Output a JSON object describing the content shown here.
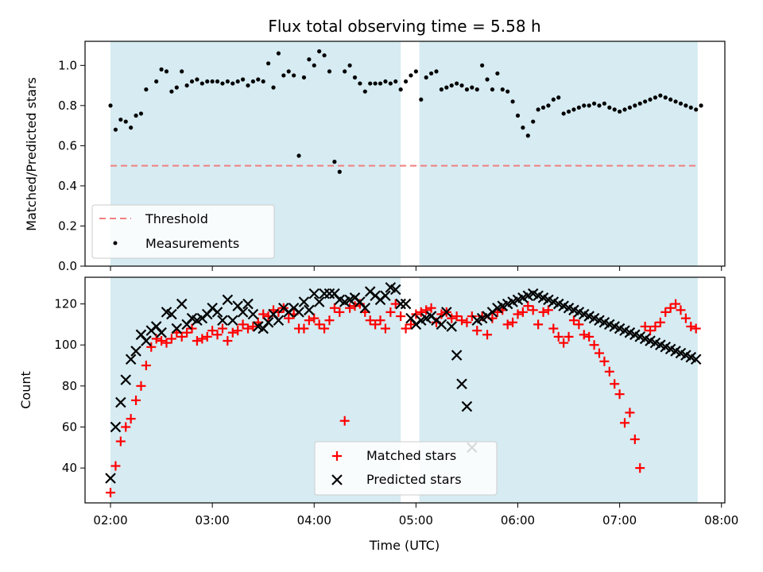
{
  "chart_data": [
    {
      "type": "scatter",
      "title": "Flux total observing time = 5.58 h",
      "xlabel": "",
      "ylabel": "Matched/Predicted stars",
      "xlim": [
        "01:45",
        "08:02"
      ],
      "ylim": [
        0,
        1.12
      ],
      "x_ticks": [
        "02:00",
        "03:00",
        "04:00",
        "05:00",
        "06:00",
        "07:00",
        "08:00"
      ],
      "y_ticks": [
        "0.0",
        "0.2",
        "0.4",
        "0.6",
        "0.8",
        "1.0"
      ],
      "grid": false,
      "legend_position": "lower-left",
      "shaded_intervals": [
        [
          "02:00",
          "04:51"
        ],
        [
          "05:02",
          "07:46"
        ]
      ],
      "shade_color": "#add8e6",
      "threshold": {
        "name": "Threshold",
        "value": 0.5,
        "style": "dashed",
        "color": "#f08080"
      },
      "series": [
        {
          "name": "Measurements",
          "marker": "dot",
          "color": "#000000",
          "x": [
            "02:00",
            "02:03",
            "02:06",
            "02:09",
            "02:12",
            "02:15",
            "02:18",
            "02:21",
            "02:27",
            "02:30",
            "02:33",
            "02:36",
            "02:39",
            "02:42",
            "02:45",
            "02:48",
            "02:51",
            "02:54",
            "02:57",
            "03:00",
            "03:03",
            "03:06",
            "03:09",
            "03:12",
            "03:15",
            "03:18",
            "03:21",
            "03:24",
            "03:27",
            "03:30",
            "03:33",
            "03:36",
            "03:39",
            "03:42",
            "03:45",
            "03:48",
            "03:51",
            "03:54",
            "03:57",
            "04:00",
            "04:03",
            "04:06",
            "04:09",
            "04:12",
            "04:15",
            "04:18",
            "04:21",
            "04:24",
            "04:27",
            "04:30",
            "04:33",
            "04:36",
            "04:39",
            "04:42",
            "04:45",
            "04:48",
            "04:51",
            "04:54",
            "04:57",
            "05:00",
            "05:03",
            "05:06",
            "05:09",
            "05:12",
            "05:15",
            "05:18",
            "05:21",
            "05:24",
            "05:27",
            "05:30",
            "05:33",
            "05:36",
            "05:39",
            "05:42",
            "05:45",
            "05:48",
            "05:51",
            "05:54",
            "05:57",
            "06:00",
            "06:03",
            "06:06",
            "06:09",
            "06:12",
            "06:15",
            "06:18",
            "06:21",
            "06:24",
            "06:27",
            "06:30",
            "06:33",
            "06:36",
            "06:39",
            "06:42",
            "06:45",
            "06:48",
            "06:51",
            "06:54",
            "06:57",
            "07:00",
            "07:03",
            "07:06",
            "07:09",
            "07:12",
            "07:15",
            "07:18",
            "07:21",
            "07:24",
            "07:27",
            "07:30",
            "07:33",
            "07:36",
            "07:39",
            "07:42",
            "07:45",
            "07:48"
          ],
          "y": [
            0.8,
            0.68,
            0.73,
            0.72,
            0.69,
            0.75,
            0.76,
            0.88,
            0.92,
            0.98,
            0.97,
            0.87,
            0.89,
            0.97,
            0.9,
            0.92,
            0.93,
            0.91,
            0.92,
            0.92,
            0.92,
            0.91,
            0.92,
            0.91,
            0.92,
            0.93,
            0.9,
            0.92,
            0.93,
            0.92,
            1.01,
            0.89,
            1.06,
            0.95,
            0.97,
            0.95,
            0.55,
            0.94,
            1.03,
            1.0,
            1.07,
            1.05,
            0.97,
            0.52,
            0.47,
            0.97,
            1.0,
            0.94,
            0.91,
            0.87,
            0.91,
            0.91,
            0.91,
            0.92,
            0.91,
            0.92,
            0.88,
            0.92,
            0.95,
            0.97,
            0.83,
            0.94,
            0.96,
            0.97,
            0.88,
            0.89,
            0.9,
            0.91,
            0.9,
            0.88,
            0.89,
            0.88,
            1.0,
            0.93,
            0.88,
            0.96,
            0.88,
            0.87,
            0.82,
            0.75,
            0.69,
            0.65,
            0.72,
            0.78,
            0.79,
            0.8,
            0.83,
            0.84,
            0.76,
            0.77,
            0.78,
            0.79,
            0.8,
            0.8,
            0.81,
            0.8,
            0.81,
            0.79,
            0.78,
            0.77,
            0.78,
            0.79,
            0.8,
            0.81,
            0.82,
            0.83,
            0.84,
            0.85,
            0.84,
            0.83,
            0.82,
            0.81,
            0.8,
            0.79,
            0.78,
            0.8
          ]
        }
      ]
    },
    {
      "type": "scatter",
      "title": "",
      "xlabel": "Time (UTC)",
      "ylabel": "Count",
      "xlim": [
        "01:45",
        "08:02"
      ],
      "ylim": [
        23,
        133
      ],
      "x_ticks": [
        "02:00",
        "03:00",
        "04:00",
        "05:00",
        "06:00",
        "07:00",
        "08:00"
      ],
      "y_ticks": [
        "40",
        "60",
        "80",
        "100",
        "120"
      ],
      "grid": false,
      "legend_position": "lower-center",
      "shaded_intervals": [
        [
          "02:00",
          "04:51"
        ],
        [
          "05:02",
          "07:46"
        ]
      ],
      "shade_color": "#add8e6",
      "series": [
        {
          "name": "Matched stars",
          "marker": "plus",
          "color": "#ff0000",
          "x": [
            "02:00",
            "02:03",
            "02:06",
            "02:09",
            "02:12",
            "02:15",
            "02:18",
            "02:21",
            "02:24",
            "02:27",
            "02:30",
            "02:33",
            "02:36",
            "02:39",
            "02:42",
            "02:45",
            "02:48",
            "02:51",
            "02:54",
            "02:57",
            "03:00",
            "03:03",
            "03:06",
            "03:09",
            "03:12",
            "03:15",
            "03:18",
            "03:21",
            "03:24",
            "03:27",
            "03:30",
            "03:33",
            "03:36",
            "03:39",
            "03:42",
            "03:45",
            "03:48",
            "03:51",
            "03:54",
            "03:57",
            "04:00",
            "04:03",
            "04:06",
            "04:09",
            "04:12",
            "04:15",
            "04:18",
            "04:21",
            "04:24",
            "04:27",
            "04:30",
            "04:33",
            "04:36",
            "04:39",
            "04:42",
            "04:45",
            "04:48",
            "04:51",
            "04:54",
            "04:57",
            "05:00",
            "05:03",
            "05:06",
            "05:09",
            "05:12",
            "05:15",
            "05:18",
            "05:21",
            "05:24",
            "05:27",
            "05:30",
            "05:33",
            "05:36",
            "05:39",
            "05:42",
            "05:45",
            "05:48",
            "05:51",
            "05:54",
            "05:57",
            "06:00",
            "06:03",
            "06:06",
            "06:09",
            "06:12",
            "06:15",
            "06:18",
            "06:21",
            "06:24",
            "06:27",
            "06:30",
            "06:33",
            "06:36",
            "06:39",
            "06:42",
            "06:45",
            "06:48",
            "06:51",
            "06:54",
            "06:57",
            "07:00",
            "07:03",
            "07:06",
            "07:09",
            "07:12",
            "07:15",
            "07:18",
            "07:21",
            "07:24",
            "07:27",
            "07:30",
            "07:33",
            "07:36",
            "07:39",
            "07:42",
            "07:45"
          ],
          "y": [
            28,
            41,
            53,
            60,
            64,
            73,
            80,
            90,
            99,
            103,
            102,
            101,
            103,
            106,
            104,
            106,
            108,
            102,
            103,
            104,
            107,
            105,
            108,
            102,
            106,
            107,
            110,
            108,
            109,
            111,
            115,
            114,
            117,
            116,
            118,
            113,
            115,
            108,
            108,
            112,
            113,
            110,
            108,
            112,
            118,
            116,
            63,
            118,
            119,
            120,
            116,
            112,
            110,
            112,
            108,
            116,
            120,
            114,
            108,
            110,
            115,
            116,
            117,
            118,
            111,
            115,
            116,
            113,
            114,
            112,
            111,
            114,
            107,
            114,
            105,
            113,
            116,
            117,
            110,
            111,
            115,
            116,
            119,
            117,
            110,
            116,
            117,
            108,
            104,
            101,
            104,
            112,
            110,
            105,
            104,
            100,
            96,
            92,
            87,
            81,
            76,
            62,
            67,
            54,
            40,
            109,
            107,
            109,
            111,
            116,
            118,
            120,
            117,
            113,
            109,
            108
          ]
        },
        {
          "name": "Predicted stars",
          "marker": "x",
          "color": "#000000",
          "x": [
            "02:00",
            "02:03",
            "02:06",
            "02:09",
            "02:12",
            "02:15",
            "02:18",
            "02:21",
            "02:24",
            "02:27",
            "02:30",
            "02:33",
            "02:36",
            "02:39",
            "02:42",
            "02:45",
            "02:48",
            "02:51",
            "02:54",
            "02:57",
            "03:00",
            "03:03",
            "03:06",
            "03:09",
            "03:12",
            "03:15",
            "03:18",
            "03:21",
            "03:24",
            "03:27",
            "03:30",
            "03:33",
            "03:36",
            "03:39",
            "03:42",
            "03:45",
            "03:48",
            "03:51",
            "03:54",
            "03:57",
            "04:00",
            "04:03",
            "04:06",
            "04:09",
            "04:12",
            "04:15",
            "04:18",
            "04:21",
            "04:24",
            "04:27",
            "04:30",
            "04:33",
            "04:36",
            "04:39",
            "04:42",
            "04:45",
            "04:48",
            "04:51",
            "04:54",
            "04:57",
            "05:00",
            "05:03",
            "05:06",
            "05:09",
            "05:12",
            "05:15",
            "05:18",
            "05:21",
            "05:24",
            "05:27",
            "05:30",
            "05:33",
            "05:36",
            "05:39",
            "05:42",
            "05:45",
            "05:48",
            "05:51",
            "05:54",
            "05:57",
            "06:00",
            "06:03",
            "06:06",
            "06:09",
            "06:12",
            "06:15",
            "06:18",
            "06:21",
            "06:24",
            "06:27",
            "06:30",
            "06:33",
            "06:36",
            "06:39",
            "06:42",
            "06:45",
            "06:48",
            "06:51",
            "06:54",
            "06:57",
            "07:00",
            "07:03",
            "07:06",
            "07:09",
            "07:12",
            "07:15",
            "07:18",
            "07:21",
            "07:24",
            "07:27",
            "07:30",
            "07:33",
            "07:36",
            "07:39",
            "07:42",
            "07:45"
          ],
          "y": [
            35,
            60,
            72,
            83,
            93,
            97,
            105,
            102,
            107,
            109,
            106,
            116,
            115,
            108,
            120,
            110,
            113,
            112,
            113,
            115,
            118,
            116,
            112,
            122,
            112,
            119,
            116,
            120,
            115,
            109,
            108,
            111,
            115,
            112,
            118,
            116,
            118,
            116,
            121,
            117,
            125,
            121,
            125,
            125,
            125,
            122,
            121,
            122,
            123,
            121,
            118,
            126,
            124,
            122,
            124,
            128,
            127,
            120,
            120,
            113,
            110,
            112,
            113,
            114,
            112,
            110,
            116,
            109,
            95,
            81,
            70,
            50,
            112,
            113,
            114,
            116,
            118,
            119,
            120,
            121,
            122,
            123,
            124,
            125,
            124,
            123,
            122,
            121,
            120,
            119,
            118,
            117,
            116,
            115,
            114,
            113,
            112,
            111,
            110,
            109,
            108,
            107,
            106,
            105,
            104,
            103,
            102,
            101,
            100,
            99,
            98,
            97,
            96,
            95,
            94,
            93
          ]
        }
      ]
    }
  ]
}
